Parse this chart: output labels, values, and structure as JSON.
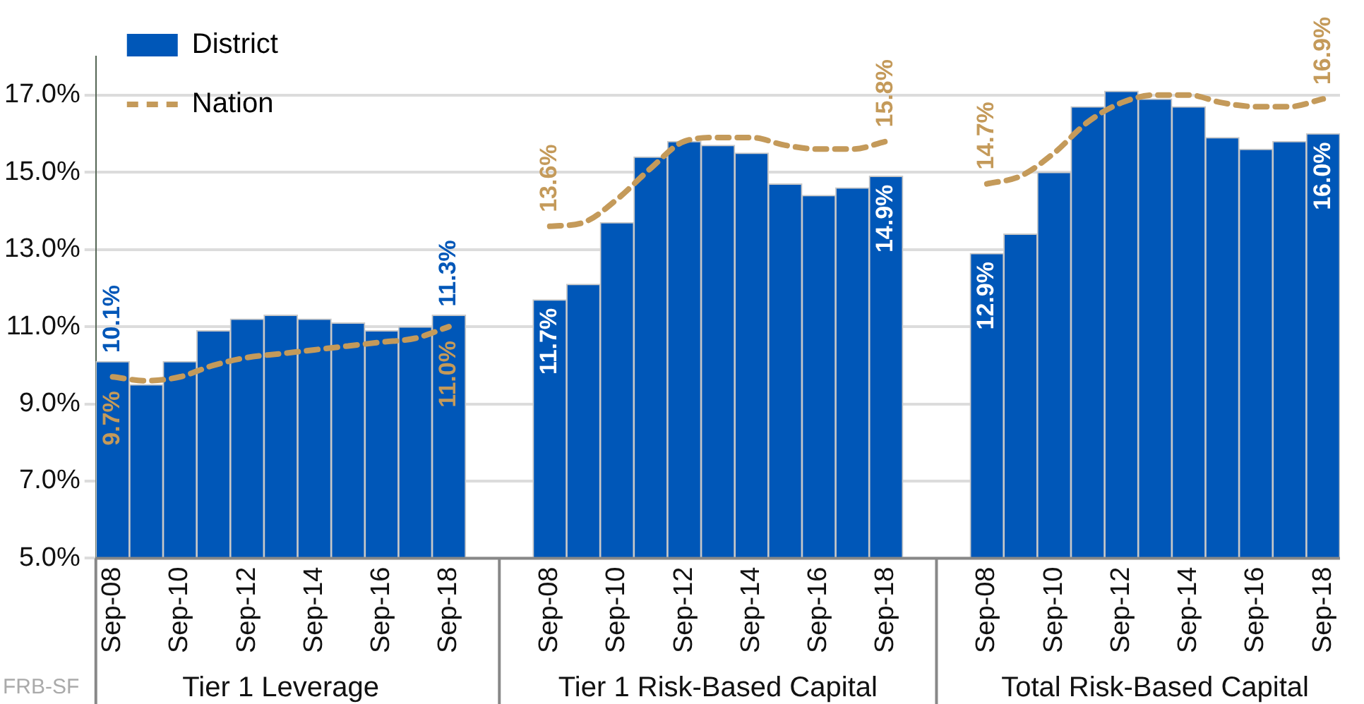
{
  "chart_data": {
    "type": "bar",
    "categories": [
      "Sep-08",
      null,
      "Sep-10",
      null,
      "Sep-12",
      null,
      "Sep-14",
      null,
      "Sep-16",
      null,
      "Sep-18",
      null,
      null,
      "Sep-08",
      null,
      "Sep-10",
      null,
      "Sep-12",
      null,
      "Sep-14",
      null,
      "Sep-16",
      null,
      "Sep-18",
      null,
      null,
      "Sep-08",
      null,
      "Sep-10",
      null,
      "Sep-12",
      null,
      "Sep-14",
      null,
      "Sep-16",
      null,
      "Sep-18"
    ],
    "series": [
      {
        "name": "District",
        "color": "#0057b8",
        "values": [
          10.1,
          9.5,
          10.1,
          10.9,
          11.2,
          11.3,
          11.2,
          11.1,
          10.9,
          11.0,
          11.3,
          null,
          null,
          11.7,
          12.1,
          13.7,
          15.4,
          15.8,
          15.7,
          15.5,
          14.7,
          14.4,
          14.6,
          14.9,
          null,
          null,
          12.9,
          13.4,
          15.0,
          16.7,
          17.1,
          16.9,
          16.7,
          15.9,
          15.6,
          15.8,
          16.0
        ],
        "value_labels": [
          "10.1%",
          null,
          null,
          null,
          null,
          null,
          null,
          null,
          null,
          null,
          "11.3%",
          null,
          null,
          "11.7%",
          null,
          null,
          null,
          null,
          null,
          null,
          null,
          null,
          null,
          "14.9%",
          null,
          null,
          "12.9%",
          null,
          null,
          null,
          null,
          null,
          null,
          null,
          null,
          null,
          "16.0%"
        ]
      },
      {
        "name": "Nation",
        "type": "line",
        "color": "#c49a5a",
        "line_style": "dashed",
        "marker": "none",
        "values": [
          9.7,
          9.6,
          9.7,
          10.0,
          10.2,
          10.3,
          10.4,
          10.5,
          10.6,
          10.7,
          11.0,
          null,
          null,
          13.6,
          13.7,
          14.3,
          15.1,
          15.8,
          15.9,
          15.9,
          15.7,
          15.6,
          15.6,
          15.8,
          null,
          null,
          14.7,
          14.9,
          15.5,
          16.3,
          16.8,
          17.0,
          17.0,
          16.8,
          16.7,
          16.7,
          16.9
        ],
        "value_labels": [
          "9.7%",
          null,
          null,
          null,
          null,
          null,
          null,
          null,
          null,
          null,
          "11.0%",
          null,
          null,
          "13.6%",
          null,
          null,
          null,
          null,
          null,
          null,
          null,
          null,
          null,
          "15.8%",
          null,
          null,
          "14.7%",
          null,
          null,
          null,
          null,
          null,
          null,
          null,
          null,
          null,
          "16.9%"
        ]
      }
    ],
    "ylim": [
      5,
      18
    ],
    "yticks": [
      {
        "value": 5,
        "label": "5.0%"
      },
      {
        "value": 7,
        "label": "7.0%"
      },
      {
        "value": 9,
        "label": "9.0%"
      },
      {
        "value": 11,
        "label": "11.0%"
      },
      {
        "value": 13,
        "label": "13.0%"
      },
      {
        "value": 15,
        "label": "15.0%"
      },
      {
        "value": 17,
        "label": "17.0%"
      }
    ],
    "grid": "y",
    "legend": "top left",
    "annotations": [
      "Tier 1 Leverage",
      "Tier 1 Risk-Based Capital",
      "Total Risk-Based Capital",
      "FRB-SF"
    ]
  }
}
